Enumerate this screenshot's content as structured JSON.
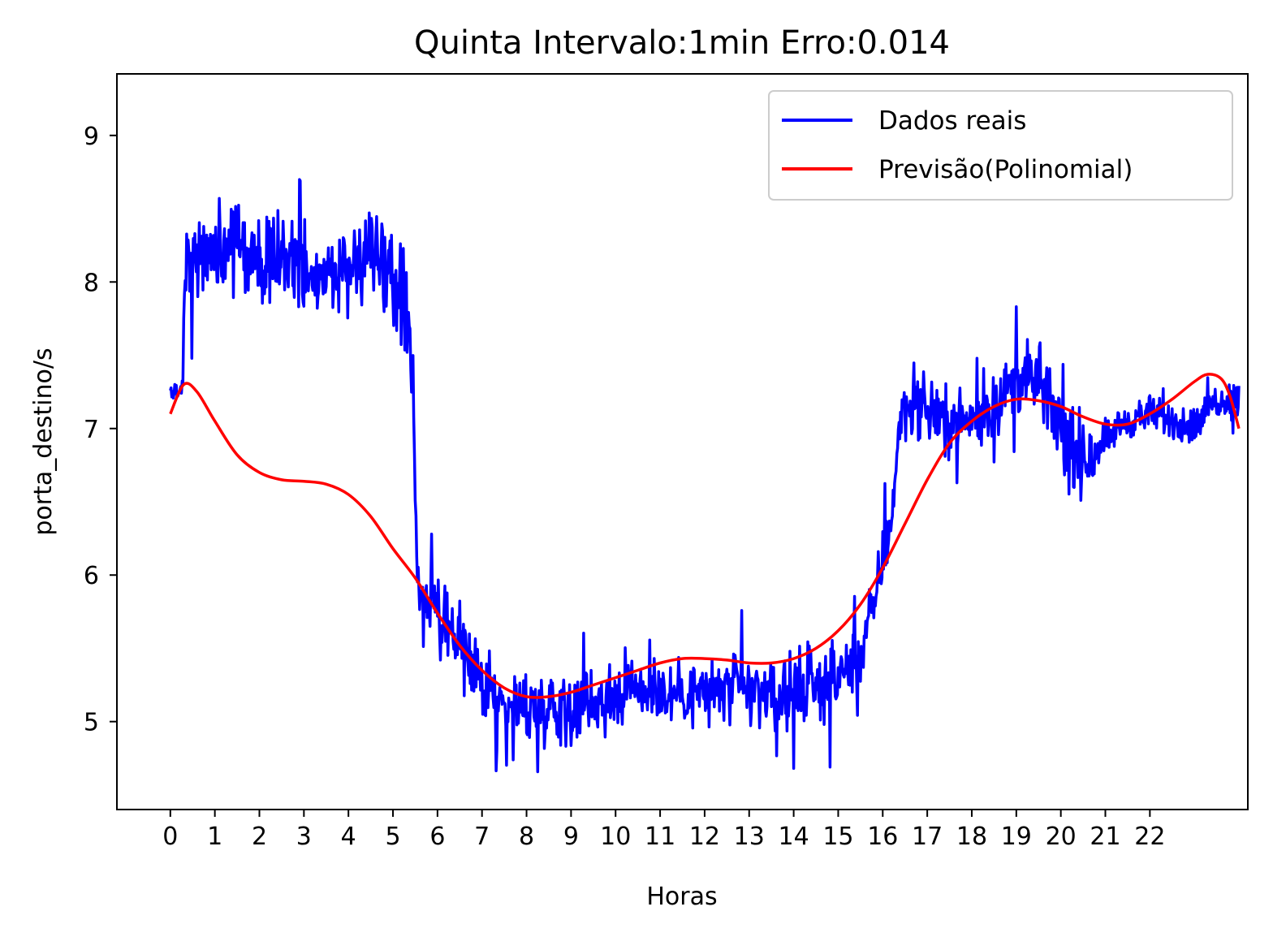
{
  "chart_data": {
    "type": "line",
    "title": "Quinta Intervalo:1min Erro:0.014",
    "xlabel": "Horas",
    "ylabel": "porta_destino/s",
    "xlim": [
      -1.2,
      24.2
    ],
    "ylim": [
      4.4,
      9.42
    ],
    "x_ticks": [
      0,
      1,
      2,
      3,
      4,
      5,
      6,
      7,
      8,
      9,
      10,
      11,
      12,
      13,
      14,
      15,
      16,
      17,
      18,
      19,
      20,
      21,
      22
    ],
    "x_tick_labels": [
      "0",
      "1",
      "2",
      "3",
      "4",
      "5",
      "6",
      "7",
      "8",
      "9",
      "10",
      "11",
      "12",
      "13",
      "14",
      "15",
      "16",
      "17",
      "18",
      "19",
      "20",
      "21",
      "22"
    ],
    "y_ticks": [
      5,
      6,
      7,
      8,
      9
    ],
    "y_tick_labels": [
      "5",
      "6",
      "7",
      "8",
      "9"
    ],
    "legend_position": "top-right",
    "series": [
      {
        "name": "Dados reais",
        "color": "#0000ff",
        "x_start": 0,
        "x_end": 24,
        "anchor_x": [
          0,
          0.2,
          0.28,
          0.32,
          0.45,
          1,
          1.5,
          2,
          2.5,
          3,
          3.5,
          4,
          4.5,
          5,
          5.25,
          5.35,
          5.4,
          5.45,
          5.5,
          5.55,
          5.6,
          6,
          6.5,
          7,
          7.5,
          8,
          8.5,
          9,
          9.5,
          10,
          10.5,
          11,
          11.5,
          12,
          12.5,
          13,
          13.5,
          14,
          14.5,
          15,
          15.5,
          16,
          16.2,
          16.4,
          16.5,
          17,
          17.5,
          18,
          18.5,
          19,
          19.5,
          20,
          20.5,
          21,
          21.5,
          22,
          22.5,
          23,
          23.5,
          24
        ],
        "anchor_y": [
          7.25,
          7.25,
          7.3,
          8.1,
          8.15,
          8.2,
          8.25,
          8.15,
          8.2,
          8.1,
          8.05,
          8.1,
          8.2,
          8.05,
          7.85,
          7.7,
          7.5,
          7.2,
          6.6,
          6.0,
          5.85,
          5.75,
          5.5,
          5.25,
          5.15,
          5.1,
          5.1,
          5.12,
          5.15,
          5.2,
          5.25,
          5.2,
          5.2,
          5.2,
          5.22,
          5.2,
          5.2,
          5.2,
          5.25,
          5.3,
          5.45,
          6.1,
          6.4,
          7.1,
          7.15,
          7.15,
          7.05,
          7.05,
          7.15,
          7.35,
          7.3,
          7.0,
          6.75,
          6.95,
          7.05,
          7.1,
          7.05,
          7.0,
          7.2,
          7.2
        ],
        "noise": [
          {
            "from": 0,
            "to": 0.3,
            "amplitude": 0.08
          },
          {
            "from": 0.3,
            "to": 5.45,
            "amplitude": 0.45
          },
          {
            "from": 5.45,
            "to": 5.65,
            "amplitude": 0.2
          },
          {
            "from": 5.65,
            "to": 10,
            "amplitude": 0.35
          },
          {
            "from": 10,
            "to": 15,
            "amplitude": 0.35
          },
          {
            "from": 15,
            "to": 16.2,
            "amplitude": 0.3
          },
          {
            "from": 16.2,
            "to": 19,
            "amplitude": 0.3
          },
          {
            "from": 19,
            "to": 20.8,
            "amplitude": 0.35
          },
          {
            "from": 20.8,
            "to": 24,
            "amplitude": 0.18
          }
        ]
      },
      {
        "name": "Previsão(Polinomial)",
        "color": "#ff0000",
        "x": [
          0,
          0.3,
          0.6,
          1,
          1.5,
          2,
          2.5,
          3,
          3.5,
          4,
          4.5,
          5,
          5.5,
          6,
          6.5,
          7,
          7.5,
          8,
          8.5,
          9,
          9.5,
          10,
          10.5,
          11,
          11.5,
          12,
          12.5,
          13,
          13.5,
          14,
          14.5,
          15,
          15.5,
          16,
          16.5,
          17,
          17.5,
          18,
          18.5,
          19,
          19.5,
          20,
          20.5,
          21,
          21.5,
          22,
          22.5,
          23,
          23.3,
          23.6,
          23.8,
          24
        ],
        "y": [
          7.1,
          7.3,
          7.25,
          7.05,
          6.82,
          6.7,
          6.65,
          6.64,
          6.62,
          6.55,
          6.4,
          6.18,
          5.98,
          5.74,
          5.52,
          5.35,
          5.23,
          5.17,
          5.17,
          5.2,
          5.25,
          5.3,
          5.35,
          5.4,
          5.43,
          5.43,
          5.42,
          5.4,
          5.4,
          5.43,
          5.5,
          5.62,
          5.8,
          6.05,
          6.35,
          6.65,
          6.9,
          7.05,
          7.15,
          7.2,
          7.19,
          7.15,
          7.08,
          7.03,
          7.03,
          7.1,
          7.2,
          7.32,
          7.37,
          7.34,
          7.22,
          7.0
        ]
      }
    ]
  }
}
